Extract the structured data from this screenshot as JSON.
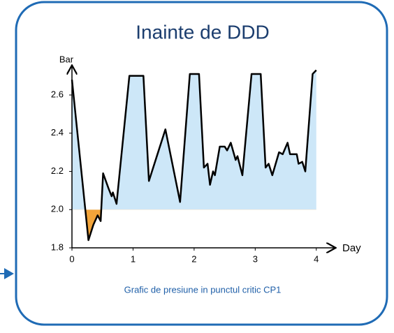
{
  "chart_data": {
    "type": "area-line",
    "title": "Inainte de DDD",
    "caption": "Grafic de presiune in punctul critic CP1",
    "y_label": "Bar",
    "x_label": "Day",
    "x": [
      0,
      0.27,
      0.35,
      0.42,
      0.47,
      0.51,
      0.6,
      0.65,
      0.67,
      0.73,
      0.94,
      1.17,
      1.26,
      1.53,
      1.77,
      1.93,
      2.08,
      2.16,
      2.22,
      2.26,
      2.31,
      2.34,
      2.42,
      2.5,
      2.54,
      2.6,
      2.68,
      2.71,
      2.79,
      2.94,
      3.09,
      3.17,
      3.22,
      3.28,
      3.39,
      3.45,
      3.53,
      3.57,
      3.68,
      3.71,
      3.77,
      3.82,
      3.94,
      4
    ],
    "values": [
      2.68,
      1.84,
      1.92,
      1.97,
      1.94,
      2.19,
      2.11,
      2.07,
      2.09,
      2.03,
      2.7,
      2.7,
      2.15,
      2.42,
      2.04,
      2.71,
      2.71,
      2.22,
      2.24,
      2.13,
      2.2,
      2.18,
      2.33,
      2.33,
      2.31,
      2.35,
      2.26,
      2.28,
      2.18,
      2.71,
      2.71,
      2.22,
      2.24,
      2.18,
      2.3,
      2.29,
      2.35,
      2.29,
      2.29,
      2.24,
      2.25,
      2.2,
      2.71,
      2.73
    ],
    "color": "#000000",
    "fill_baseline": 2.0,
    "fill_above_color": "#cde7f8",
    "fill_below_color": "#f2a43a",
    "xlim": [
      0,
      4.3
    ],
    "xticks": [
      0,
      1,
      2,
      3,
      4
    ],
    "ylim": [
      1.8,
      2.75
    ],
    "yticks": [
      {
        "value": 1.8,
        "label": "1.8"
      },
      {
        "value": 2.0,
        "label": "2.0"
      },
      {
        "value": 2.2,
        "label": "2.2"
      },
      {
        "value": 2.4,
        "label": "2.4"
      },
      {
        "value": 2.6,
        "label": "2.6"
      }
    ],
    "grid": false
  }
}
